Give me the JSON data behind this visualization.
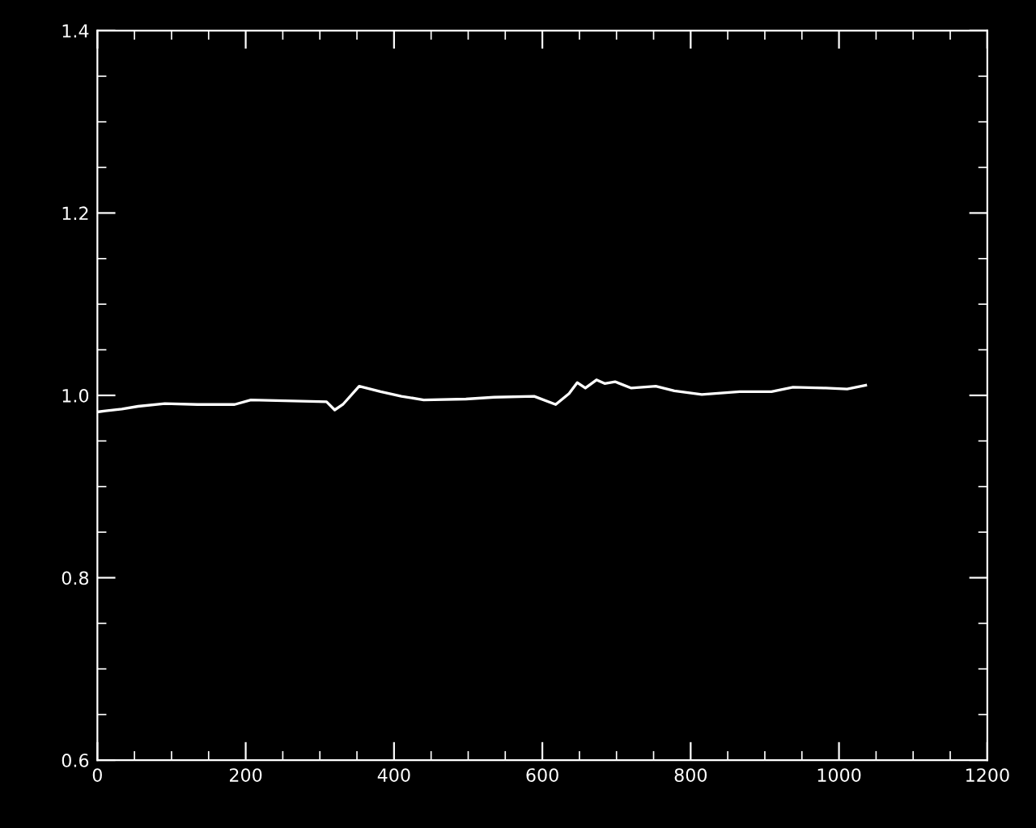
{
  "chart_data": {
    "type": "line",
    "series": [
      {
        "color": "#ffffff",
        "x": [
          1.5,
          11,
          33,
          55,
          91,
          135,
          185,
          207,
          309,
          320,
          331,
          353,
          382,
          410,
          440,
          497,
          535,
          589,
          618,
          636,
          647,
          658,
          673,
          684,
          698,
          720,
          753,
          778,
          815,
          866,
          909,
          938,
          982,
          1011,
          1036
        ],
        "values": [
          0.982,
          0.983,
          0.985,
          0.988,
          0.991,
          0.99,
          0.99,
          0.995,
          0.993,
          0.984,
          0.99,
          1.01,
          1.004,
          0.999,
          0.995,
          0.996,
          0.998,
          0.999,
          0.99,
          1.002,
          1.014,
          1.008,
          1.017,
          1.013,
          1.015,
          1.008,
          1.01,
          1.005,
          1.001,
          1.004,
          1.004,
          1.009,
          1.008,
          1.007,
          1.011
        ]
      }
    ],
    "xlim": [
      0,
      1200
    ],
    "xticks": [
      0,
      200,
      400,
      600,
      800,
      1000,
      1200
    ],
    "ylim": [
      0.6,
      1.4
    ],
    "yticks": [
      0.6,
      0.8,
      {
        "value": 1,
        "label": "1.0"
      },
      1.2,
      1.4
    ],
    "grid": false,
    "legend": false,
    "marker": "none",
    "line_style": "solid"
  }
}
